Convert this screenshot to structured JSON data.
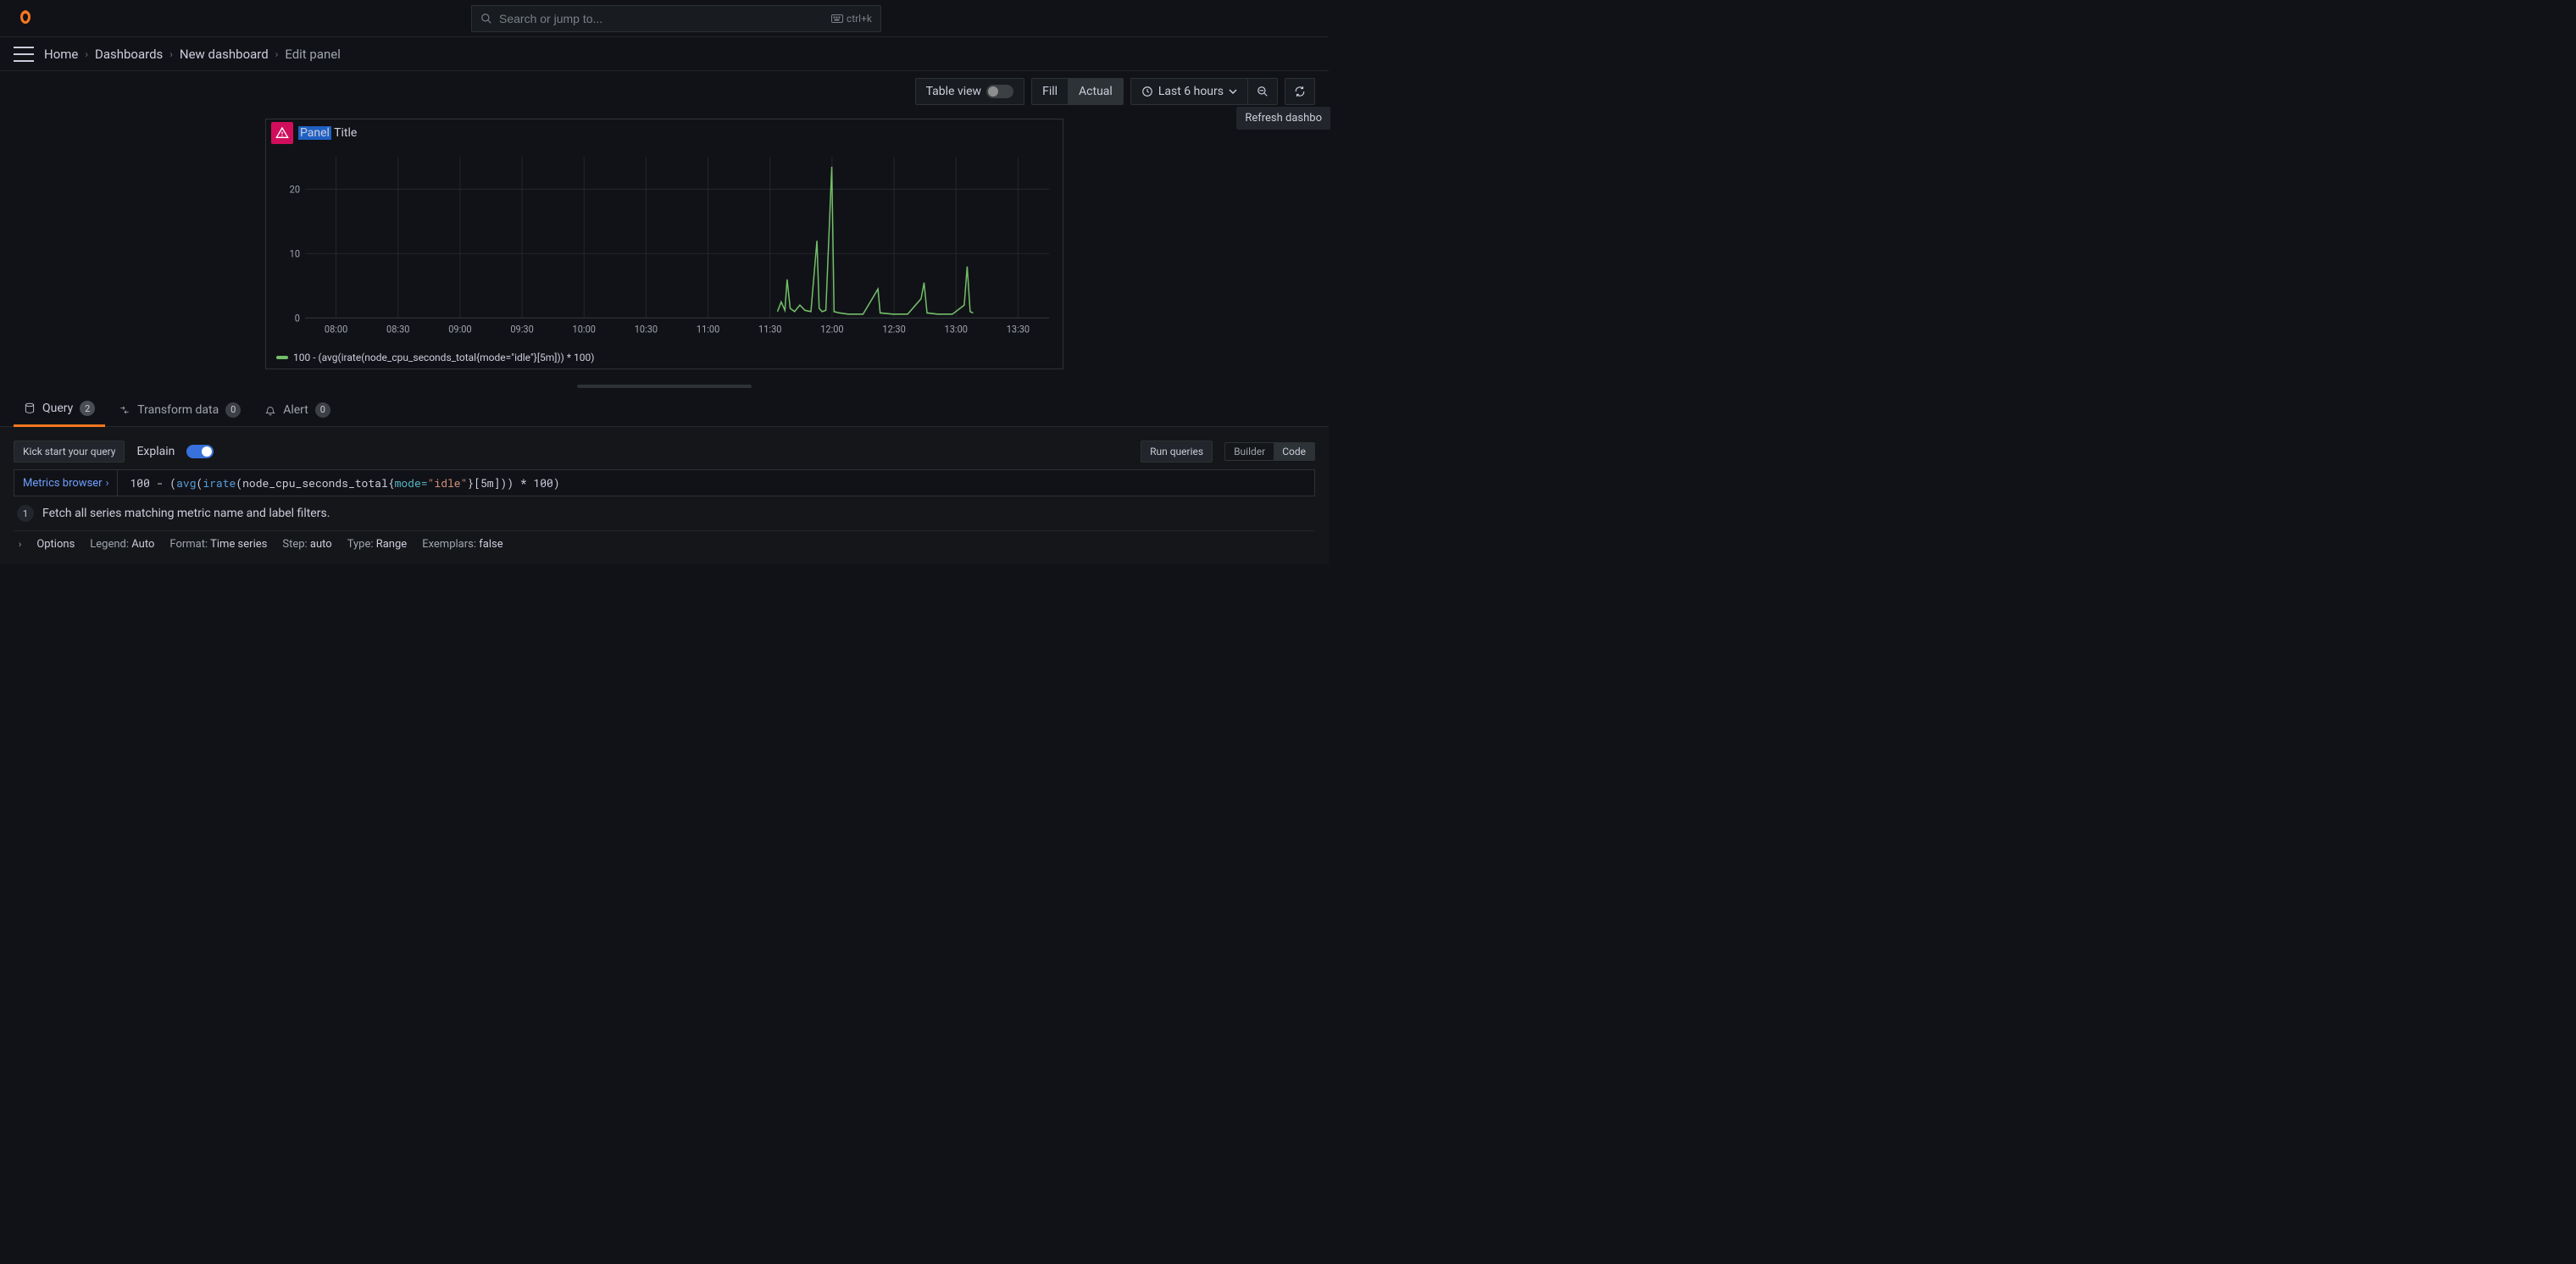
{
  "header": {
    "search_placeholder": "Search or jump to...",
    "shortcut": "ctrl+k"
  },
  "breadcrumb": {
    "items": [
      "Home",
      "Dashboards",
      "New dashboard",
      "Edit panel"
    ]
  },
  "toolbar": {
    "table_view_label": "Table view",
    "table_view_on": false,
    "fill_label": "Fill",
    "actual_label": "Actual",
    "size_mode_active": "Actual",
    "time_range_label": "Last 6 hours",
    "refresh_tooltip": "Refresh dashbo"
  },
  "panel": {
    "title_highlight": "Panel",
    "title_rest": " Title",
    "warning": true,
    "legend_label": "100 - (avg(irate(node_cpu_seconds_total{mode=\"idle\"}[5m])) * 100)",
    "chart": {
      "type": "line",
      "series_color": "#73bf69",
      "background_color": "#111217",
      "grid_color": "#24262b",
      "axis_color": "#2c3235",
      "ylim": [
        0,
        25
      ],
      "yticks": [
        0,
        10,
        20
      ],
      "xticks": [
        "08:00",
        "08:30",
        "09:00",
        "09:30",
        "10:00",
        "10:30",
        "11:00",
        "11:30",
        "12:00",
        "12:30",
        "13:00",
        "13:30"
      ],
      "tick_fontsize": 11,
      "line_width": 1.5,
      "points": [
        [
          0.635,
          1.0
        ],
        [
          0.64,
          2.5
        ],
        [
          0.645,
          1.2
        ],
        [
          0.648,
          6.0
        ],
        [
          0.652,
          1.5
        ],
        [
          0.658,
          1.0
        ],
        [
          0.665,
          2.0
        ],
        [
          0.672,
          1.2
        ],
        [
          0.68,
          1.0
        ],
        [
          0.688,
          12.0
        ],
        [
          0.691,
          1.5
        ],
        [
          0.695,
          1.0
        ],
        [
          0.7,
          1.2
        ],
        [
          0.708,
          23.5
        ],
        [
          0.711,
          1.0
        ],
        [
          0.718,
          0.8
        ],
        [
          0.73,
          0.6
        ],
        [
          0.75,
          0.6
        ],
        [
          0.77,
          4.5
        ],
        [
          0.773,
          0.8
        ],
        [
          0.79,
          0.6
        ],
        [
          0.81,
          0.6
        ],
        [
          0.828,
          3.0
        ],
        [
          0.832,
          5.5
        ],
        [
          0.836,
          0.8
        ],
        [
          0.85,
          0.6
        ],
        [
          0.87,
          0.6
        ],
        [
          0.886,
          2.0
        ],
        [
          0.89,
          8.0
        ],
        [
          0.894,
          1.0
        ],
        [
          0.898,
          0.8
        ]
      ]
    }
  },
  "tabs": {
    "query": {
      "label": "Query",
      "count": "2"
    },
    "transform": {
      "label": "Transform data",
      "count": "0"
    },
    "alert": {
      "label": "Alert",
      "count": "0"
    }
  },
  "query_section": {
    "kick_start_label": "Kick start your query",
    "explain_label": "Explain",
    "explain_on": true,
    "run_queries_label": "Run queries",
    "builder_label": "Builder",
    "code_label": "Code",
    "editor_mode_active": "Code",
    "metrics_browser_label": "Metrics browser",
    "query_text_prefix": "100 - (",
    "query_fn_avg": "avg",
    "query_paren1": "(",
    "query_fn_irate": "irate",
    "query_paren2": "(node_cpu_seconds_total{",
    "query_label_key": "mode",
    "query_eq": "=",
    "query_label_val": "\"idle\"",
    "query_close1": "}[5m])) * 100)",
    "explain_step_num": "1",
    "explain_step_text": "Fetch all series matching metric name and label filters.",
    "options": {
      "label": "Options",
      "legend": {
        "k": "Legend:",
        "v": "Auto"
      },
      "format": {
        "k": "Format:",
        "v": "Time series"
      },
      "step": {
        "k": "Step:",
        "v": "auto"
      },
      "type": {
        "k": "Type:",
        "v": "Range"
      },
      "exemplars": {
        "k": "Exemplars:",
        "v": "false"
      }
    }
  }
}
